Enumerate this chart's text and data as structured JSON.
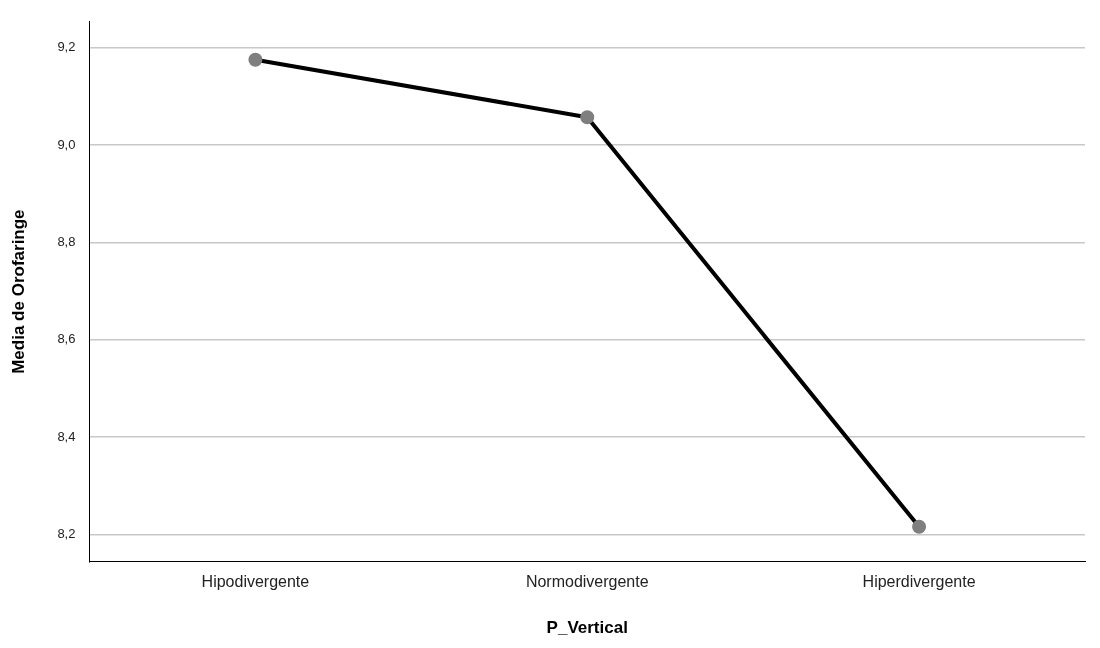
{
  "chart_data": {
    "type": "line",
    "xlabel": "P_Vertical",
    "ylabel": "Media de Orofaringe",
    "categories": [
      "Hipodivergente",
      "Normodivergente",
      "Hiperdivergente"
    ],
    "series": [
      {
        "color": "#000000",
        "values": [
          9.175,
          9.057,
          8.216
        ]
      }
    ],
    "ylim": [
      8.145,
      9.253
    ],
    "yticks": [
      {
        "value": 8.2,
        "label": "8,2"
      },
      {
        "value": 8.4,
        "label": "8,4"
      },
      {
        "value": 8.6,
        "label": "8,6"
      },
      {
        "value": 8.8,
        "label": "8,8"
      },
      {
        "value": 9.0,
        "label": "9,0"
      },
      {
        "value": 9.2,
        "label": "9,2"
      }
    ],
    "grid": "y",
    "legend": false,
    "marker": "circle",
    "line_style": "solid"
  }
}
